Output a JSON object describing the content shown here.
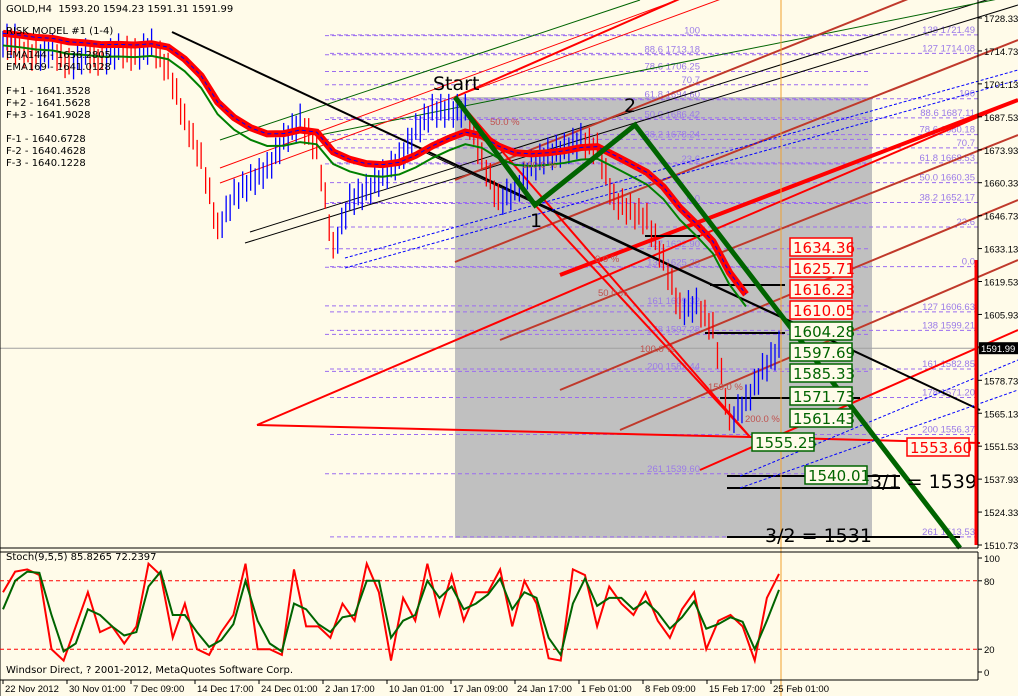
{
  "header": {
    "symbol": "GOLD,H4",
    "ohlc": "1593.20 1594.23 1591.31 1591.99",
    "model": "RISK MODEL #1 (1-4)",
    "ema144": "EMA144 - 1636.2805",
    "ema169": "EMA169 - 1641.0128",
    "f_plus": [
      "F+1 - 1641.3528",
      "F+2 - 1641.5628",
      "F+3 - 1641.9028"
    ],
    "f_minus": [
      "F-1 - 1640.6728",
      "F-2 - 1640.4628",
      "F-3 - 1640.1228"
    ]
  },
  "footer": {
    "copyright": "Windsor Direct, ? 2001-2012, MetaQuotes Software Corp."
  },
  "chart_data": [
    {
      "type": "line",
      "title": "GOLD,H4",
      "price_axis": {
        "ticks": [
          "1728.33",
          "1714.73",
          "1701.13",
          "1687.53",
          "1673.93",
          "1660.33",
          "1646.73",
          "1633.13",
          "1619.53",
          "1605.93",
          "1591.99",
          "1578.73",
          "1565.13",
          "1551.53",
          "1537.93",
          "1524.33",
          "1510.73"
        ],
        "ylim": [
          1510.73,
          1728.33
        ],
        "current_price": "1591.99"
      },
      "x_ticks": [
        "22 Nov 2012",
        "30 Nov 01:00",
        "7 Dec 09:00",
        "14 Dec 17:00",
        "24 Dec 01:00",
        "2 Jan 17:00",
        "10 Jan 01:00",
        "17 Jan 09:00",
        "24 Jan 17:00",
        "1 Feb 01:00",
        "8 Feb 09:00",
        "15 Feb 17:00",
        "25 Feb 01:00"
      ],
      "close_approx": [
        1719,
        1715,
        1713,
        1715,
        1709,
        1713,
        1711,
        1715,
        1713,
        1717,
        1707,
        1686,
        1670,
        1641,
        1655,
        1661,
        1666,
        1678,
        1686,
        1674,
        1633,
        1653,
        1657,
        1663,
        1670,
        1682,
        1690,
        1690,
        1690,
        1670,
        1653,
        1657,
        1667,
        1672,
        1674,
        1678,
        1674,
        1653,
        1649,
        1645,
        1628,
        1608,
        1610,
        1600,
        1562,
        1570,
        1583,
        1592
      ],
      "fib_left": [
        {
          "lvl": 100,
          "label": "100"
        },
        {
          "lvl": 88.6,
          "label": "88.6  1713.18"
        },
        {
          "lvl": 78.6,
          "label": "78.6 1706.25"
        },
        {
          "lvl": 70.7,
          "label": "70.7"
        },
        {
          "lvl": 61.8,
          "label": "61.8 1694.60"
        },
        {
          "lvl": 50,
          "label": "50.0 1686.42"
        },
        {
          "lvl": 38.2,
          "label": "38.2 1678.24"
        },
        {
          "lvl": 23.6,
          "label": "23.6"
        },
        {
          "lvl": 0,
          "label": "0.0"
        },
        {
          "lvl": 127,
          "label": "127 1632.90"
        },
        {
          "lvl": 138,
          "label": "138 1625.28"
        },
        {
          "lvl": 161,
          "label": "161 1609.32"
        },
        {
          "lvl": 178,
          "label": "178 1597.28"
        },
        {
          "lvl": 200,
          "label": "200 1582.44"
        },
        {
          "lvl": 261,
          "label": "261 1539.60"
        }
      ],
      "fib_right": [
        {
          "lvl": 138,
          "label": "138 1721.49",
          "up": true
        },
        {
          "lvl": 127,
          "label": "127 1714.08",
          "up": true
        },
        {
          "lvl": 100,
          "label": "100"
        },
        {
          "lvl": 88.6,
          "label": "88.6 1687.11"
        },
        {
          "lvl": 78.6,
          "label": "78.6 1680.18"
        },
        {
          "lvl": 70.7,
          "label": "70.7"
        },
        {
          "lvl": 61.8,
          "label": "61.8 1668.53"
        },
        {
          "lvl": 50,
          "label": "50.0 1660.35"
        },
        {
          "lvl": 38.2,
          "label": "38.2 1652.17"
        },
        {
          "lvl": 23.6,
          "label": "23.6"
        },
        {
          "lvl": 0,
          "label": "0.0"
        },
        {
          "lvl": 127,
          "label": "127 1606.63"
        },
        {
          "lvl": 138,
          "label": "138 1599.21"
        },
        {
          "lvl": 161,
          "label": "161 1582.85"
        },
        {
          "lvl": 178,
          "label": "178 1571.20"
        },
        {
          "lvl": 200,
          "label": "200 1556.37"
        },
        {
          "lvl": 261,
          "label": "261 1513.53"
        }
      ],
      "price_boxes_red": [
        "1634.36",
        "1625.71",
        "1616.23",
        "1610.05"
      ],
      "price_boxes_green": [
        "1604.28",
        "1597.69",
        "1585.33",
        "1571.73",
        "1561.43",
        "1555.25"
      ],
      "box_1540": "1540.01",
      "box_1553": "1553.60",
      "wave_labels": [
        "Start",
        "1",
        "2"
      ],
      "targets": [
        "3/1 = 1539",
        "3/2 = 1531"
      ],
      "pct_labels": [
        "50.0 %",
        "100.0 %",
        "0.0 %",
        "50.0 %",
        "100.0 %",
        "150.0 %",
        "200.0 %"
      ],
      "colors": {
        "background": "#fffbe9",
        "up_bar": "#0000ff",
        "down_bar": "#ff0000",
        "ema": "#ff0000",
        "zigzag": "#006400",
        "zone": "#c0c0c0",
        "fib": "#9b7be8"
      }
    },
    {
      "type": "line",
      "title": "Stoch(9,5,5) 85.8265 72.2397",
      "ylim": [
        0,
        100
      ],
      "y_ticks": [
        "100",
        "80",
        "20",
        "0"
      ],
      "levels": [
        80,
        20
      ],
      "series": [
        {
          "values": [
            70,
            88,
            90,
            85,
            20,
            10,
            40,
            70,
            35,
            40,
            25,
            40,
            95,
            85,
            30,
            60,
            20,
            15,
            35,
            50,
            95,
            20,
            20,
            15,
            90,
            40,
            40,
            30,
            60,
            45,
            95,
            70,
            10,
            65,
            45,
            95,
            50,
            85,
            45,
            70,
            70,
            90,
            40,
            80,
            60,
            12,
            10,
            90,
            85,
            40,
            75,
            60,
            50,
            70,
            45,
            30,
            55,
            70,
            20,
            45,
            50,
            40,
            10,
            65,
            86
          ]
        },
        {
          "values": [
            55,
            80,
            88,
            87,
            50,
            18,
            25,
            55,
            50,
            40,
            32,
            35,
            75,
            88,
            50,
            50,
            35,
            22,
            28,
            42,
            80,
            45,
            25,
            18,
            60,
            55,
            42,
            35,
            48,
            50,
            80,
            80,
            30,
            45,
            50,
            80,
            65,
            75,
            55,
            60,
            68,
            82,
            55,
            70,
            65,
            30,
            15,
            60,
            82,
            58,
            65,
            65,
            55,
            62,
            52,
            38,
            48,
            62,
            38,
            42,
            48,
            44,
            20,
            45,
            72
          ]
        }
      ]
    }
  ]
}
